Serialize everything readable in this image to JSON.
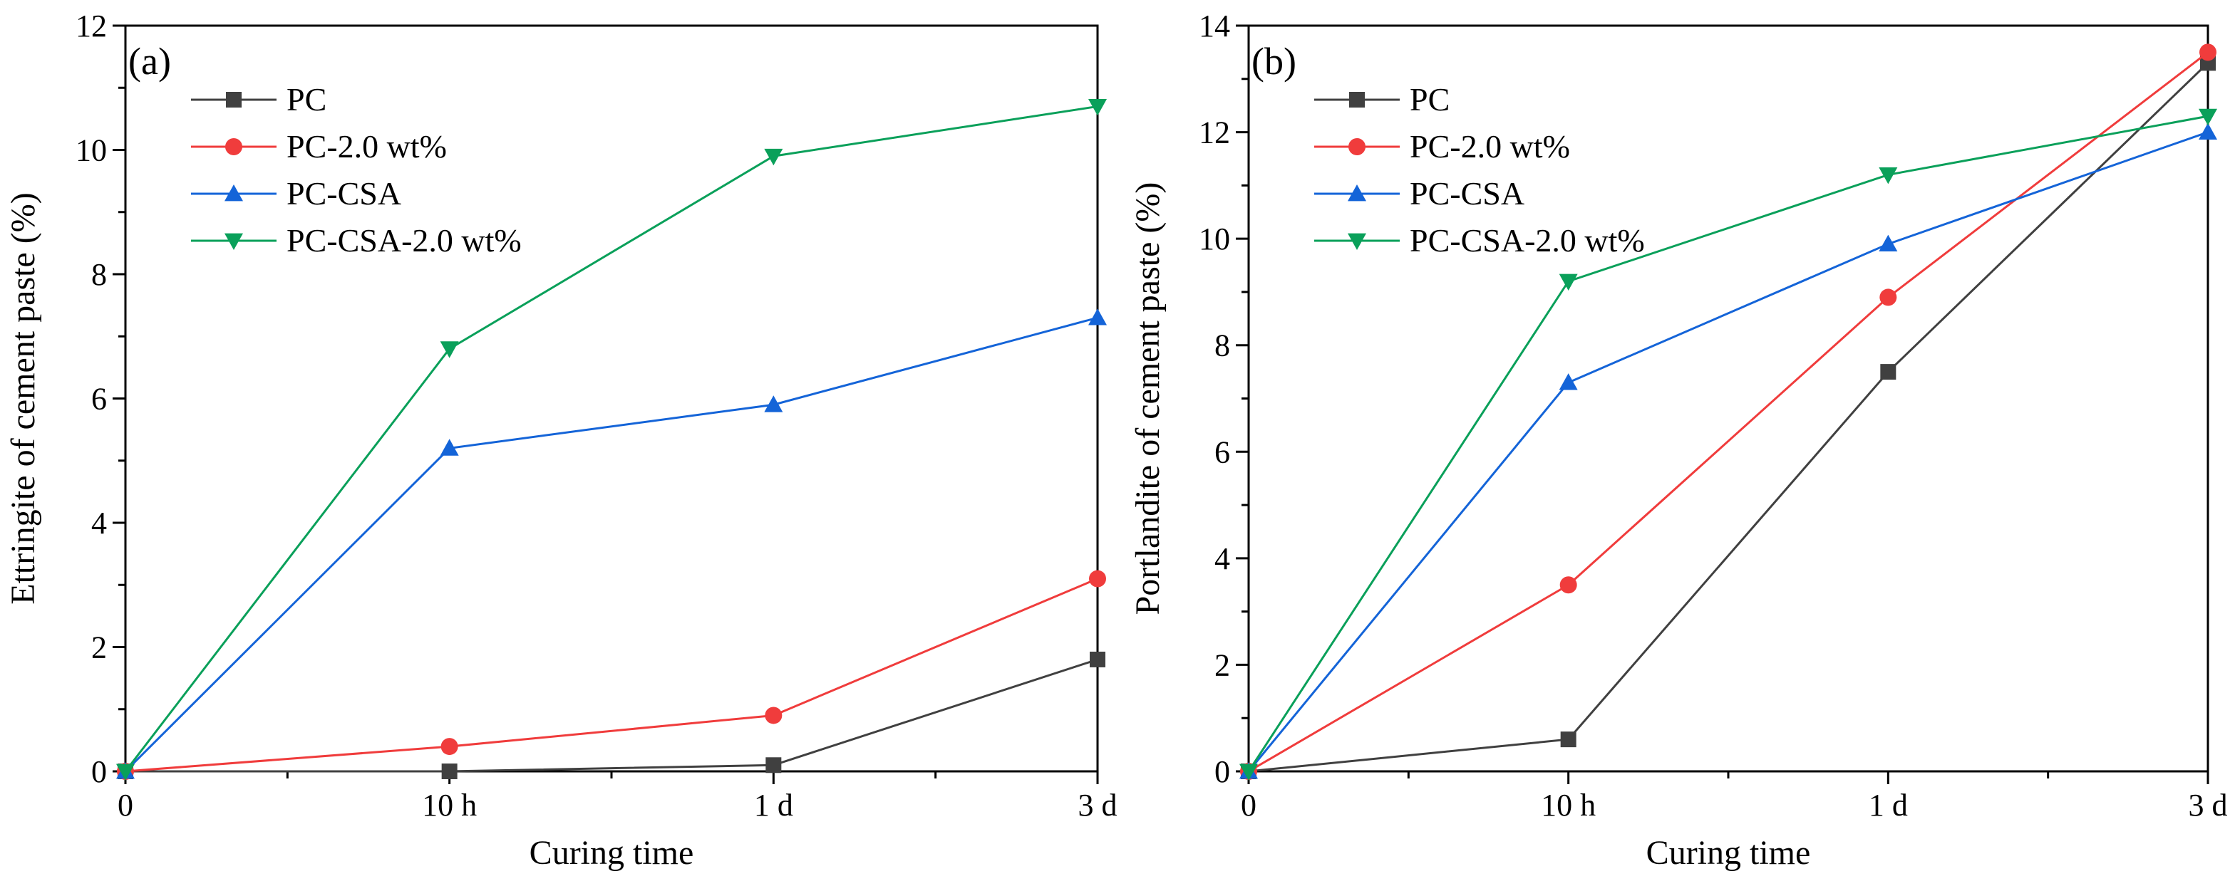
{
  "chart_data": [
    {
      "type": "line",
      "panel_label": "(a)",
      "categories": [
        "0",
        "10 h",
        "1 d",
        "3 d"
      ],
      "xlabel": "Curing time",
      "ylabel": "Ettringite of cement paste (%)",
      "ylim": [
        0,
        12
      ],
      "yticks": [
        0,
        2,
        4,
        6,
        8,
        10,
        12
      ],
      "legend_position": "top-left",
      "series": [
        {
          "name": "PC",
          "values": [
            0,
            0,
            0.1,
            1.8
          ],
          "color": "#404040",
          "marker": "square"
        },
        {
          "name": "PC-2.0 wt%",
          "values": [
            0,
            0.4,
            0.9,
            3.1
          ],
          "color": "#f03c3c",
          "marker": "circle"
        },
        {
          "name": "PC-CSA",
          "values": [
            0,
            5.2,
            5.9,
            7.3
          ],
          "color": "#1464d8",
          "marker": "triangle-up"
        },
        {
          "name": "PC-CSA-2.0 wt%",
          "values": [
            0,
            6.8,
            9.9,
            10.7
          ],
          "color": "#0aa05a",
          "marker": "triangle-down"
        }
      ]
    },
    {
      "type": "line",
      "panel_label": "(b)",
      "categories": [
        "0",
        "10 h",
        "1 d",
        "3 d"
      ],
      "xlabel": "Curing time",
      "ylabel": "Portlandite of cement paste (%)",
      "ylim": [
        0,
        14
      ],
      "yticks": [
        0,
        2,
        4,
        6,
        8,
        10,
        12,
        14
      ],
      "legend_position": "top-left",
      "series": [
        {
          "name": "PC",
          "values": [
            0,
            0.6,
            7.5,
            13.3
          ],
          "color": "#404040",
          "marker": "square"
        },
        {
          "name": "PC-2.0 wt%",
          "values": [
            0,
            3.5,
            8.9,
            13.5
          ],
          "color": "#f03c3c",
          "marker": "circle"
        },
        {
          "name": "PC-CSA",
          "values": [
            0,
            7.3,
            9.9,
            12.0
          ],
          "color": "#1464d8",
          "marker": "triangle-up"
        },
        {
          "name": "PC-CSA-2.0 wt%",
          "values": [
            0,
            9.2,
            11.2,
            12.3
          ],
          "color": "#0aa05a",
          "marker": "triangle-down"
        }
      ]
    }
  ]
}
